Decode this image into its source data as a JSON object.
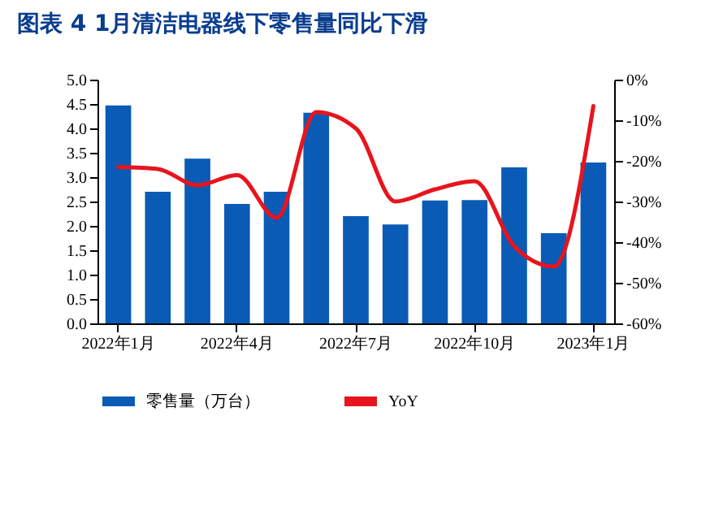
{
  "chart_data": {
    "type": "bar",
    "title": "图表 4   1月清洁电器线下零售量同比下滑",
    "categories": [
      "2022年1月",
      null,
      null,
      "2022年4月",
      null,
      null,
      "2022年7月",
      null,
      null,
      "2022年10月",
      null,
      null,
      "2023年1月"
    ],
    "series": [
      {
        "name": "零售量（万台）",
        "color": "#0a5bb5",
        "values": [
          4.47,
          2.7,
          3.38,
          2.45,
          2.7,
          4.32,
          2.2,
          2.03,
          2.52,
          2.53,
          3.2,
          1.85,
          3.3
        ]
      },
      {
        "name": "YoY",
        "type": "line",
        "axis": "y2",
        "color": "#e8141d",
        "values": [
          -21.5,
          -22,
          -26,
          -23.5,
          -34,
          -8,
          -12,
          -30,
          -27,
          -25,
          -41,
          -46,
          -6.5
        ]
      }
    ],
    "ylim": [
      0,
      5
    ],
    "yticks": [
      {
        "value": 0,
        "label": "0.0"
      },
      {
        "value": 0.5,
        "label": "0.5"
      },
      {
        "value": 1,
        "label": "1.0"
      },
      {
        "value": 1.5,
        "label": "1.5"
      },
      {
        "value": 2,
        "label": "2.0"
      },
      {
        "value": 2.5,
        "label": "2.5"
      },
      {
        "value": 3,
        "label": "3.0"
      },
      {
        "value": 3.5,
        "label": "3.5"
      },
      {
        "value": 4,
        "label": "4.0"
      },
      {
        "value": 4.5,
        "label": "4.5"
      },
      {
        "value": 5,
        "label": "5.0"
      }
    ],
    "y2lim": [
      -60,
      0
    ],
    "y2ticks": [
      {
        "value": -60,
        "label": "-60%"
      },
      {
        "value": -50,
        "label": "-50%"
      },
      {
        "value": -40,
        "label": "-40%"
      },
      {
        "value": -30,
        "label": "-30%"
      },
      {
        "value": -20,
        "label": "-20%"
      },
      {
        "value": -10,
        "label": "-10%"
      },
      {
        "value": 0,
        "label": "0%"
      }
    ],
    "grid": false,
    "legend": "bottom"
  }
}
